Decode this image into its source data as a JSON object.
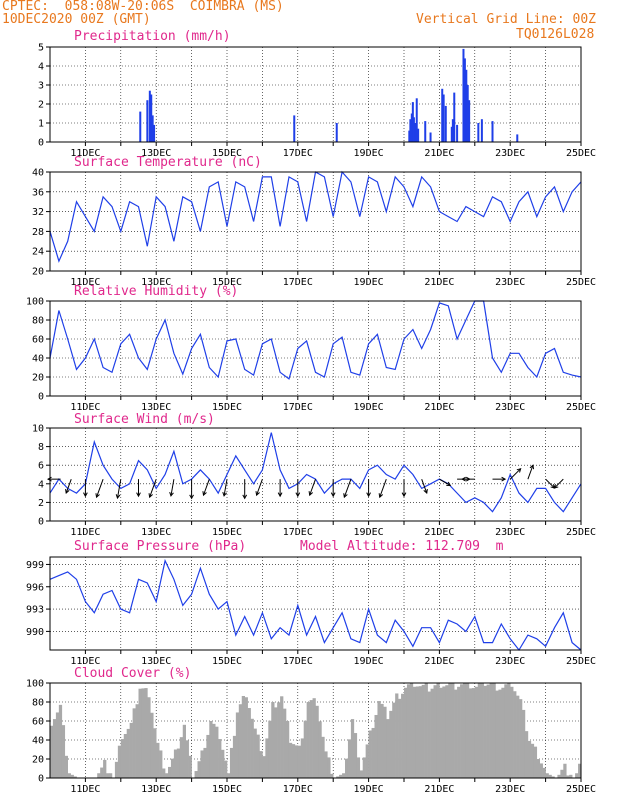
{
  "header": {
    "line1": "CPTEC:  058:08W-20:06S  COIMBRA (MS)",
    "line2": "10DEC2020 00Z (GMT)",
    "grid_note": "Vertical Grid Line: 00Z",
    "code": "TQ0126L028"
  },
  "date_ticks": [
    "11DEC",
    "13DEC",
    "15DEC",
    "17DEC",
    "19DEC",
    "21DEC",
    "23DEC",
    "25DEC"
  ],
  "colors": {
    "line": "#1f3fe8",
    "bar": "#1f3fe8",
    "cloud": "#a9a9a9",
    "header": "#e8781e",
    "title": "#e0288c"
  },
  "chart_data": [
    {
      "type": "bar",
      "title": "Precipitation (mm/h)",
      "xlim": [
        0,
        15
      ],
      "ylim": [
        0,
        5
      ],
      "yticks": [
        0,
        1,
        2,
        3,
        4,
        5
      ],
      "x": [
        2.55,
        2.75,
        2.82,
        2.86,
        2.9,
        2.94,
        6.9,
        8.1,
        10.15,
        10.18,
        10.22,
        10.25,
        10.28,
        10.32,
        10.36,
        10.4,
        10.6,
        10.75,
        11.08,
        11.12,
        11.18,
        11.35,
        11.38,
        11.42,
        11.5,
        11.68,
        11.72,
        11.76,
        11.8,
        11.84,
        12.1,
        12.2,
        12.5,
        13.2
      ],
      "values": [
        1.6,
        2.2,
        2.7,
        2.5,
        1.4,
        0.9,
        1.4,
        1.0,
        0.6,
        1.2,
        1.5,
        2.1,
        1.3,
        1.0,
        2.3,
        0.7,
        1.1,
        0.5,
        2.8,
        2.5,
        1.9,
        0.8,
        1.2,
        2.6,
        0.9,
        4.9,
        4.4,
        3.8,
        3.0,
        2.2,
        1.0,
        1.2,
        1.1,
        0.4
      ]
    },
    {
      "type": "line",
      "title": "Surface Temperature (nC)",
      "xlim": [
        0,
        15
      ],
      "ylim": [
        20,
        40
      ],
      "yticks": [
        20,
        24,
        28,
        32,
        36,
        40
      ],
      "x": [
        0,
        0.25,
        0.5,
        0.75,
        1,
        1.25,
        1.5,
        1.75,
        2,
        2.25,
        2.5,
        2.75,
        3,
        3.25,
        3.5,
        3.75,
        4,
        4.25,
        4.5,
        4.75,
        5,
        5.25,
        5.5,
        5.75,
        6,
        6.25,
        6.5,
        6.75,
        7,
        7.25,
        7.5,
        7.75,
        8,
        8.25,
        8.5,
        8.75,
        9,
        9.25,
        9.5,
        9.75,
        10,
        10.25,
        10.5,
        10.75,
        11,
        11.25,
        11.5,
        11.75,
        12,
        12.25,
        12.5,
        12.75,
        13,
        13.25,
        13.5,
        13.75,
        14,
        14.25,
        14.5,
        14.75,
        15
      ],
      "values": [
        28,
        22,
        26,
        34,
        31,
        28,
        35,
        33,
        28,
        34,
        33,
        25,
        35,
        33,
        26,
        35,
        34,
        28,
        37,
        38,
        29,
        38,
        37,
        30,
        39,
        39,
        29,
        39,
        38,
        30,
        40,
        39,
        31,
        40,
        38,
        31,
        39,
        38,
        32,
        39,
        37,
        33,
        39,
        37,
        32,
        31,
        30,
        33,
        32,
        31,
        35,
        34,
        30,
        34,
        36,
        31,
        35,
        37,
        32,
        36,
        38
      ]
    },
    {
      "type": "line",
      "title": "Relative Humidity (%)",
      "xlim": [
        0,
        15
      ],
      "ylim": [
        0,
        100
      ],
      "yticks": [
        0,
        20,
        40,
        60,
        80,
        100
      ],
      "x": [
        0,
        0.25,
        0.5,
        0.75,
        1,
        1.25,
        1.5,
        1.75,
        2,
        2.25,
        2.5,
        2.75,
        3,
        3.25,
        3.5,
        3.75,
        4,
        4.25,
        4.5,
        4.75,
        5,
        5.25,
        5.5,
        5.75,
        6,
        6.25,
        6.5,
        6.75,
        7,
        7.25,
        7.5,
        7.75,
        8,
        8.25,
        8.5,
        8.75,
        9,
        9.25,
        9.5,
        9.75,
        10,
        10.25,
        10.5,
        10.75,
        11,
        11.25,
        11.5,
        11.75,
        12,
        12.25,
        12.5,
        12.75,
        13,
        13.25,
        13.5,
        13.75,
        14,
        14.25,
        14.5,
        14.75,
        15
      ],
      "values": [
        40,
        90,
        60,
        28,
        40,
        60,
        30,
        25,
        55,
        65,
        40,
        28,
        60,
        80,
        45,
        23,
        50,
        65,
        30,
        20,
        58,
        60,
        28,
        22,
        55,
        60,
        25,
        18,
        50,
        58,
        25,
        20,
        55,
        62,
        25,
        22,
        55,
        65,
        30,
        28,
        60,
        70,
        50,
        70,
        98,
        95,
        60,
        80,
        100,
        100,
        40,
        25,
        45,
        45,
        30,
        20,
        45,
        50,
        25,
        22,
        20
      ]
    },
    {
      "type": "line",
      "title": "Surface Wind (m/s)",
      "xlim": [
        0,
        15
      ],
      "ylim": [
        0,
        10
      ],
      "yticks": [
        0,
        2,
        4,
        6,
        8,
        10
      ],
      "x": [
        0,
        0.25,
        0.5,
        0.75,
        1,
        1.25,
        1.5,
        1.75,
        2,
        2.25,
        2.5,
        2.75,
        3,
        3.25,
        3.5,
        3.75,
        4,
        4.25,
        4.5,
        4.75,
        5,
        5.25,
        5.5,
        5.75,
        6,
        6.25,
        6.5,
        6.75,
        7,
        7.25,
        7.5,
        7.75,
        8,
        8.25,
        8.5,
        8.75,
        9,
        9.25,
        9.5,
        9.75,
        10,
        10.25,
        10.5,
        10.75,
        11,
        11.25,
        11.5,
        11.75,
        12,
        12.25,
        12.5,
        12.75,
        13,
        13.25,
        13.5,
        13.75,
        14,
        14.25,
        14.5,
        14.75,
        15
      ],
      "values": [
        3,
        4.5,
        3.5,
        3,
        4,
        8.5,
        6,
        4.5,
        3.5,
        4,
        6.5,
        5.5,
        3.5,
        5,
        7.5,
        4,
        4.5,
        5.5,
        4.5,
        3,
        5,
        7,
        5.5,
        4,
        5.5,
        9.5,
        5.5,
        3.5,
        4,
        5,
        4.5,
        3,
        4,
        4.5,
        4.5,
        3.5,
        5.5,
        6,
        5,
        4.5,
        6,
        5,
        3.5,
        4,
        4.5,
        4,
        3,
        2,
        2.5,
        2,
        1,
        2.5,
        5,
        3,
        2,
        3.5,
        3.5,
        2,
        1,
        2.5,
        4
      ],
      "arrow_x": [
        0.3,
        0.6,
        1.0,
        1.5,
        2.0,
        2.5,
        3.0,
        3.5,
        4.0,
        4.5,
        5.0,
        5.5,
        6.0,
        6.5,
        7.0,
        7.5,
        8.0,
        8.5,
        9.0,
        9.5,
        10.0,
        10.5,
        11.0,
        11.5,
        12.0,
        12.5,
        13.0,
        13.5,
        14.0,
        14.5
      ],
      "arrow_dir_deg": [
        270,
        200,
        180,
        200,
        190,
        180,
        200,
        190,
        180,
        200,
        190,
        180,
        200,
        180,
        180,
        200,
        180,
        200,
        180,
        200,
        180,
        160,
        120,
        90,
        270,
        90,
        45,
        20,
        135,
        225
      ],
      "arrow_speed": [
        3,
        4,
        5,
        6,
        6,
        5,
        6,
        5,
        6,
        5,
        5,
        6,
        5,
        5,
        5,
        5,
        5,
        6,
        5,
        6,
        5,
        4,
        3,
        3,
        3,
        3,
        4,
        4,
        3,
        3
      ]
    },
    {
      "type": "line",
      "title": "Surface Pressure (hPa)",
      "subtitle": "Model Altitude: 112.709  m",
      "xlim": [
        0,
        15
      ],
      "ylim": [
        987.5,
        1000
      ],
      "yticks": [
        990,
        993,
        996,
        999
      ],
      "x": [
        0,
        0.25,
        0.5,
        0.75,
        1,
        1.25,
        1.5,
        1.75,
        2,
        2.25,
        2.5,
        2.75,
        3,
        3.25,
        3.5,
        3.75,
        4,
        4.25,
        4.5,
        4.75,
        5,
        5.25,
        5.5,
        5.75,
        6,
        6.25,
        6.5,
        6.75,
        7,
        7.25,
        7.5,
        7.75,
        8,
        8.25,
        8.5,
        8.75,
        9,
        9.25,
        9.5,
        9.75,
        10,
        10.25,
        10.5,
        10.75,
        11,
        11.25,
        11.5,
        11.75,
        12,
        12.25,
        12.5,
        12.75,
        13,
        13.25,
        13.5,
        13.75,
        14,
        14.25,
        14.5,
        14.75,
        15
      ],
      "values": [
        997,
        997.5,
        998,
        997,
        994,
        992.5,
        995,
        995.5,
        993,
        992.5,
        997,
        996.5,
        994,
        999.5,
        997,
        993.5,
        995,
        998.5,
        995,
        993,
        994,
        989.5,
        992,
        989.5,
        992.5,
        989,
        990.5,
        989.5,
        993.5,
        989.5,
        992,
        988.5,
        990.5,
        992.5,
        989,
        988.5,
        993,
        989.5,
        988.5,
        991.5,
        990,
        988,
        990.5,
        990.5,
        988.5,
        991.5,
        991,
        990,
        992,
        988.5,
        988.5,
        991,
        989,
        987.5,
        989.5,
        989,
        988,
        990.5,
        992.5,
        988.5,
        987
      ]
    },
    {
      "type": "area",
      "title": "Cloud Cover (%)",
      "xlim": [
        0,
        15
      ],
      "ylim": [
        0,
        100
      ],
      "yticks": [
        0,
        20,
        40,
        60,
        80,
        100
      ],
      "x": [
        0,
        0.25,
        0.5,
        0.75,
        1,
        1.25,
        1.5,
        1.75,
        2,
        2.25,
        2.5,
        2.75,
        3,
        3.25,
        3.5,
        3.75,
        4,
        4.25,
        4.5,
        4.75,
        5,
        5.25,
        5.5,
        5.75,
        6,
        6.25,
        6.5,
        6.75,
        7,
        7.25,
        7.5,
        7.75,
        8,
        8.25,
        8.5,
        8.75,
        9,
        9.25,
        9.5,
        9.75,
        10,
        10.25,
        10.5,
        10.75,
        11,
        11.25,
        11.5,
        11.75,
        12,
        12.25,
        12.5,
        12.75,
        13,
        13.25,
        13.5,
        13.75,
        14,
        14.25,
        14.5,
        14.75,
        15
      ],
      "values": [
        60,
        75,
        5,
        0,
        0,
        0,
        15,
        0,
        45,
        55,
        95,
        90,
        35,
        5,
        25,
        55,
        0,
        25,
        60,
        45,
        5,
        70,
        90,
        50,
        25,
        75,
        85,
        40,
        30,
        80,
        80,
        25,
        0,
        5,
        60,
        10,
        45,
        80,
        65,
        85,
        95,
        100,
        95,
        95,
        100,
        98,
        98,
        100,
        95,
        100,
        98,
        95,
        100,
        80,
        40,
        25,
        5,
        0,
        10,
        0,
        15
      ]
    }
  ]
}
